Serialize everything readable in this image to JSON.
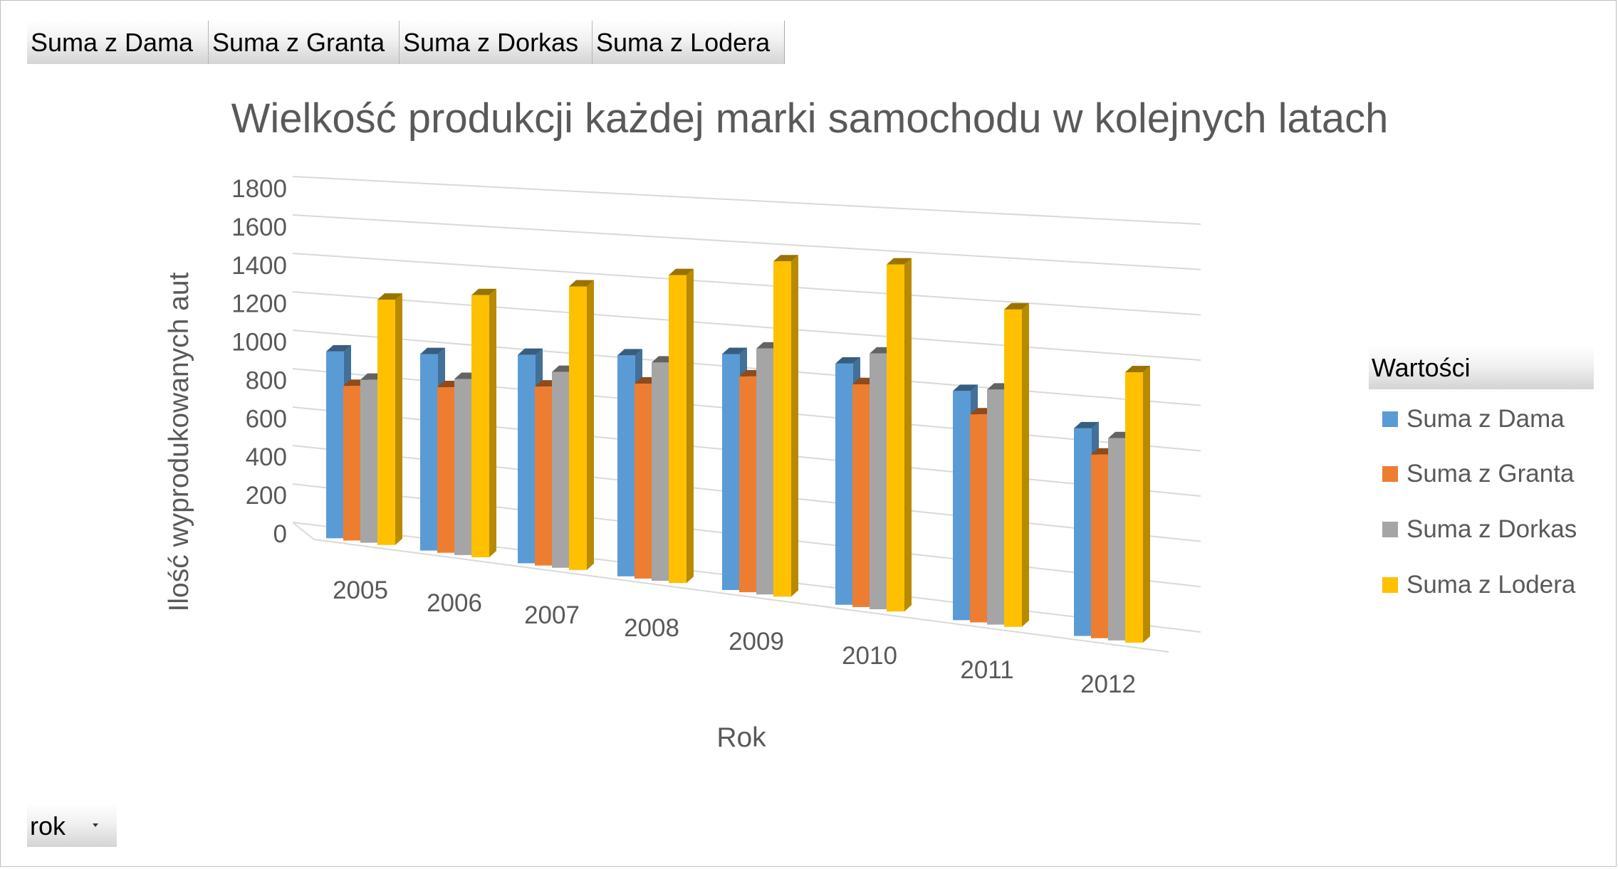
{
  "field_buttons": [
    "Suma z Dama",
    "Suma z Granta",
    "Suma z Dorkas",
    "Suma z Lodera"
  ],
  "legend_header": "Wartości",
  "filter_button": {
    "label": "rok"
  },
  "colors": {
    "Suma z Dama": "#5b9bd5",
    "Suma z Granta": "#ed7d31",
    "Suma z Dorkas": "#a5a5a5",
    "Suma z Lodera": "#ffc000"
  },
  "chart_data": {
    "type": "bar",
    "style": "3d-clustered-column",
    "title": "Wielkość produkcji każdej marki samochodu w kolejnych latach",
    "xlabel": "Rok",
    "ylabel": "Ilość wyprodukowanych aut",
    "ylim": [
      0,
      1800
    ],
    "y_ticks": [
      0,
      200,
      400,
      600,
      800,
      1000,
      1200,
      1400,
      1600,
      1800
    ],
    "grid": true,
    "legend_position": "right",
    "categories": [
      "2005",
      "2006",
      "2007",
      "2008",
      "2009",
      "2010",
      "2011",
      "2012"
    ],
    "series": [
      {
        "name": "Suma z Dama",
        "values": [
          970,
          1000,
          1040,
          1080,
          1130,
          1130,
          1050,
          930
        ]
      },
      {
        "name": "Suma z Granta",
        "values": [
          800,
          840,
          890,
          950,
          1030,
          1040,
          950,
          820
        ]
      },
      {
        "name": "Suma z Dorkas",
        "values": [
          840,
          890,
          970,
          1060,
          1170,
          1190,
          1070,
          900
        ]
      },
      {
        "name": "Suma z Lodera",
        "values": [
          1260,
          1320,
          1400,
          1490,
          1590,
          1610,
          1440,
          1200
        ]
      }
    ]
  }
}
